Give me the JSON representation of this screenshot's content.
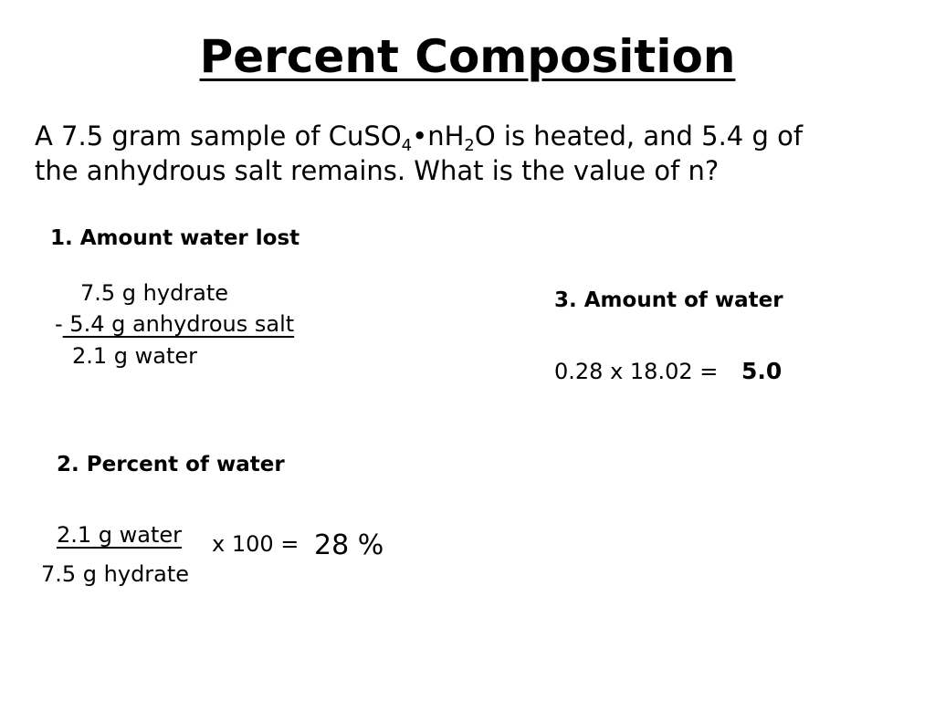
{
  "title": "Percent Composition",
  "problem": {
    "line1_prefix": "A 7.5 gram sample of CuSO",
    "sub1": "4",
    "line1_mid": "•nH",
    "sub2": "2",
    "line1_suffix": "O is heated, and 5.4 g of",
    "line2": "the anhydrous salt remains.  What is the value of n?"
  },
  "step1": {
    "heading": "1. Amount water lost",
    "hydrate": "7.5 g hydrate",
    "minus": "-",
    "anhydrous": " 5.4 g anhydrous salt",
    "water": "2.1 g water"
  },
  "step2": {
    "heading": "2. Percent of water",
    "numerator": "2.1 g water",
    "denominator": "7.5 g hydrate",
    "multiplier": "x 100 =",
    "result": "28 %"
  },
  "step3": {
    "heading": "3. Amount of water",
    "equation": "0.28 x 18.02 =",
    "result": "5.0"
  }
}
